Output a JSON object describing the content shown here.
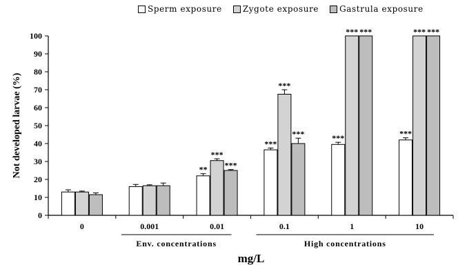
{
  "chart_data": {
    "type": "bar",
    "categories": [
      "0",
      "0.001",
      "0.01",
      "0.1",
      "1",
      "10"
    ],
    "series": [
      {
        "name": "Sperm exposure",
        "values": [
          13,
          16,
          22,
          36.5,
          39.5,
          42
        ],
        "errors": [
          1.2,
          1.2,
          1.2,
          1.0,
          1.2,
          1.2
        ],
        "sig": [
          "",
          "",
          "**",
          "***",
          "***",
          "***"
        ],
        "color": "#ffffff"
      },
      {
        "name": "Zygote exposure",
        "values": [
          13,
          16.5,
          30.5,
          67.5,
          100,
          100
        ],
        "errors": [
          0.5,
          0.5,
          1.0,
          2.5,
          0,
          0
        ],
        "sig": [
          "",
          "",
          "***",
          "***",
          "***",
          "***"
        ],
        "color": "#d3d3d3"
      },
      {
        "name": "Gastrula exposure",
        "values": [
          11.5,
          16.5,
          25,
          40,
          100,
          100
        ],
        "errors": [
          1.0,
          1.5,
          0.5,
          3.0,
          0,
          0
        ],
        "sig": [
          "",
          "",
          "***",
          "***",
          "***",
          "***"
        ],
        "color": "#bdbdbd"
      }
    ],
    "xlabel": "mg/L",
    "ylabel": "Not developed larvae (%)",
    "ylim": [
      0,
      100
    ],
    "yticks": [
      0,
      10,
      20,
      30,
      40,
      50,
      60,
      70,
      80,
      90,
      100
    ],
    "grid": false,
    "legend_position": "top",
    "group_labels": [
      {
        "label": "Env. concentrations",
        "from": "0.001",
        "to": "0.01"
      },
      {
        "label": "High concentrations",
        "from": "0.1",
        "to": "10"
      }
    ]
  }
}
